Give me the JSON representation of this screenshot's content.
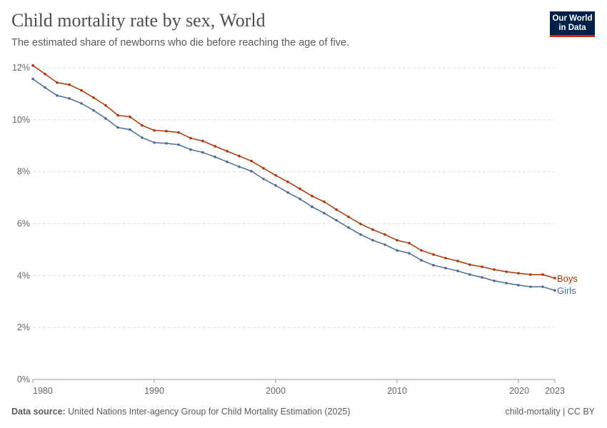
{
  "header": {
    "title": "Child mortality rate by sex, World",
    "subtitle": "The estimated share of newborns who die before reaching the age of five.",
    "logo": "Our World in Data"
  },
  "footer": {
    "source_label": "Data source:",
    "source_text": "United Nations Inter-agency Group for Child Mortality Estimation (2025)",
    "right": "child-mortality | CC BY"
  },
  "chart_data": {
    "type": "line",
    "title": "Child mortality rate by sex, World",
    "xlabel": "",
    "ylabel": "",
    "xlim": [
      1980,
      2023
    ],
    "ylim": [
      0,
      12
    ],
    "y_ticks": [
      "0%",
      "2%",
      "4%",
      "6%",
      "8%",
      "10%",
      "12%"
    ],
    "x_ticks": [
      "1980",
      "1990",
      "2000",
      "2010",
      "2020",
      "2023"
    ],
    "grid": "horizontal dashed",
    "legend": "inline-right",
    "x": [
      1980,
      1981,
      1982,
      1983,
      1984,
      1985,
      1986,
      1987,
      1988,
      1989,
      1990,
      1991,
      1992,
      1993,
      1994,
      1995,
      1996,
      1997,
      1998,
      1999,
      2000,
      2001,
      2002,
      2003,
      2004,
      2005,
      2006,
      2007,
      2008,
      2009,
      2010,
      2011,
      2012,
      2013,
      2014,
      2015,
      2016,
      2017,
      2018,
      2019,
      2020,
      2021,
      2022,
      2023
    ],
    "series": [
      {
        "name": "Boys",
        "color": "#b13507",
        "values": [
          12.09,
          11.76,
          11.43,
          11.35,
          11.13,
          10.85,
          10.55,
          10.17,
          10.11,
          9.78,
          9.59,
          9.56,
          9.51,
          9.29,
          9.18,
          8.98,
          8.79,
          8.6,
          8.41,
          8.13,
          7.86,
          7.61,
          7.34,
          7.06,
          6.84,
          6.54,
          6.26,
          5.99,
          5.77,
          5.58,
          5.36,
          5.25,
          4.97,
          4.81,
          4.67,
          4.56,
          4.42,
          4.34,
          4.23,
          4.15,
          4.09,
          4.04,
          4.04,
          3.9
        ]
      },
      {
        "name": "Girls",
        "color": "#4c6a9c",
        "values": [
          11.57,
          11.24,
          10.93,
          10.82,
          10.63,
          10.36,
          10.05,
          9.7,
          9.62,
          9.31,
          9.12,
          9.09,
          9.04,
          8.85,
          8.74,
          8.57,
          8.38,
          8.19,
          8.02,
          7.72,
          7.47,
          7.2,
          6.95,
          6.65,
          6.4,
          6.13,
          5.85,
          5.58,
          5.36,
          5.19,
          4.97,
          4.86,
          4.59,
          4.4,
          4.29,
          4.18,
          4.04,
          3.93,
          3.8,
          3.71,
          3.63,
          3.57,
          3.57,
          3.43
        ]
      }
    ]
  }
}
